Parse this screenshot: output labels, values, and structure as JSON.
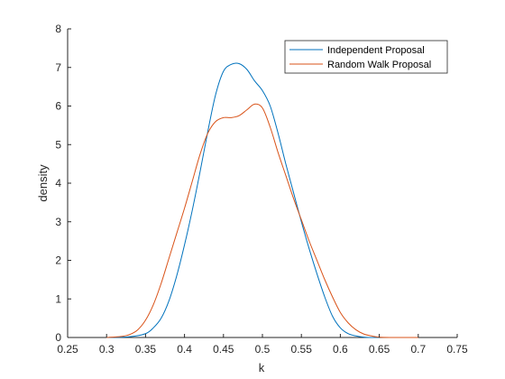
{
  "chart_data": {
    "type": "line",
    "title": "",
    "xlabel": "k",
    "ylabel": "density",
    "xlim": [
      0.25,
      0.75
    ],
    "ylim": [
      0,
      8
    ],
    "xticks": [
      0.25,
      0.3,
      0.35,
      0.4,
      0.45,
      0.5,
      0.55,
      0.6,
      0.65,
      0.7,
      0.75
    ],
    "yticks": [
      0,
      1,
      2,
      3,
      4,
      5,
      6,
      7,
      8
    ],
    "xtick_labels": [
      "0.25",
      "0.3",
      "0.35",
      "0.4",
      "0.45",
      "0.5",
      "0.55",
      "0.6",
      "0.65",
      "0.7",
      "0.75"
    ],
    "ytick_labels": [
      "0",
      "1",
      "2",
      "3",
      "4",
      "5",
      "6",
      "7",
      "8"
    ],
    "grid": false,
    "legend_position": "top-right",
    "series": [
      {
        "name": "Independent Proposal",
        "color": "#0072BD",
        "x": [
          0.3,
          0.33,
          0.35,
          0.36,
          0.37,
          0.38,
          0.39,
          0.4,
          0.41,
          0.42,
          0.43,
          0.44,
          0.45,
          0.46,
          0.47,
          0.48,
          0.49,
          0.5,
          0.51,
          0.52,
          0.53,
          0.54,
          0.55,
          0.56,
          0.57,
          0.58,
          0.59,
          0.6,
          0.61,
          0.62,
          0.63,
          0.64,
          0.65
        ],
        "y": [
          0.0,
          0.02,
          0.1,
          0.25,
          0.5,
          0.95,
          1.6,
          2.4,
          3.3,
          4.3,
          5.35,
          6.3,
          6.9,
          7.08,
          7.1,
          6.95,
          6.65,
          6.4,
          6.0,
          5.3,
          4.5,
          3.75,
          3.0,
          2.3,
          1.65,
          1.05,
          0.55,
          0.25,
          0.1,
          0.04,
          0.01,
          0.0,
          0.0
        ]
      },
      {
        "name": "Random Walk Proposal",
        "color": "#D95319",
        "x": [
          0.3,
          0.32,
          0.33,
          0.34,
          0.35,
          0.36,
          0.37,
          0.38,
          0.39,
          0.4,
          0.41,
          0.42,
          0.43,
          0.44,
          0.45,
          0.46,
          0.47,
          0.48,
          0.49,
          0.5,
          0.51,
          0.52,
          0.53,
          0.54,
          0.55,
          0.56,
          0.57,
          0.58,
          0.59,
          0.6,
          0.61,
          0.62,
          0.63,
          0.64,
          0.65,
          0.67,
          0.7
        ],
        "y": [
          0.0,
          0.03,
          0.08,
          0.2,
          0.45,
          0.85,
          1.4,
          2.05,
          2.7,
          3.35,
          4.05,
          4.75,
          5.3,
          5.6,
          5.7,
          5.7,
          5.75,
          5.9,
          6.05,
          5.95,
          5.45,
          4.8,
          4.2,
          3.6,
          3.05,
          2.5,
          2.0,
          1.5,
          1.05,
          0.65,
          0.38,
          0.2,
          0.09,
          0.04,
          0.01,
          0.0,
          0.0
        ]
      }
    ]
  }
}
